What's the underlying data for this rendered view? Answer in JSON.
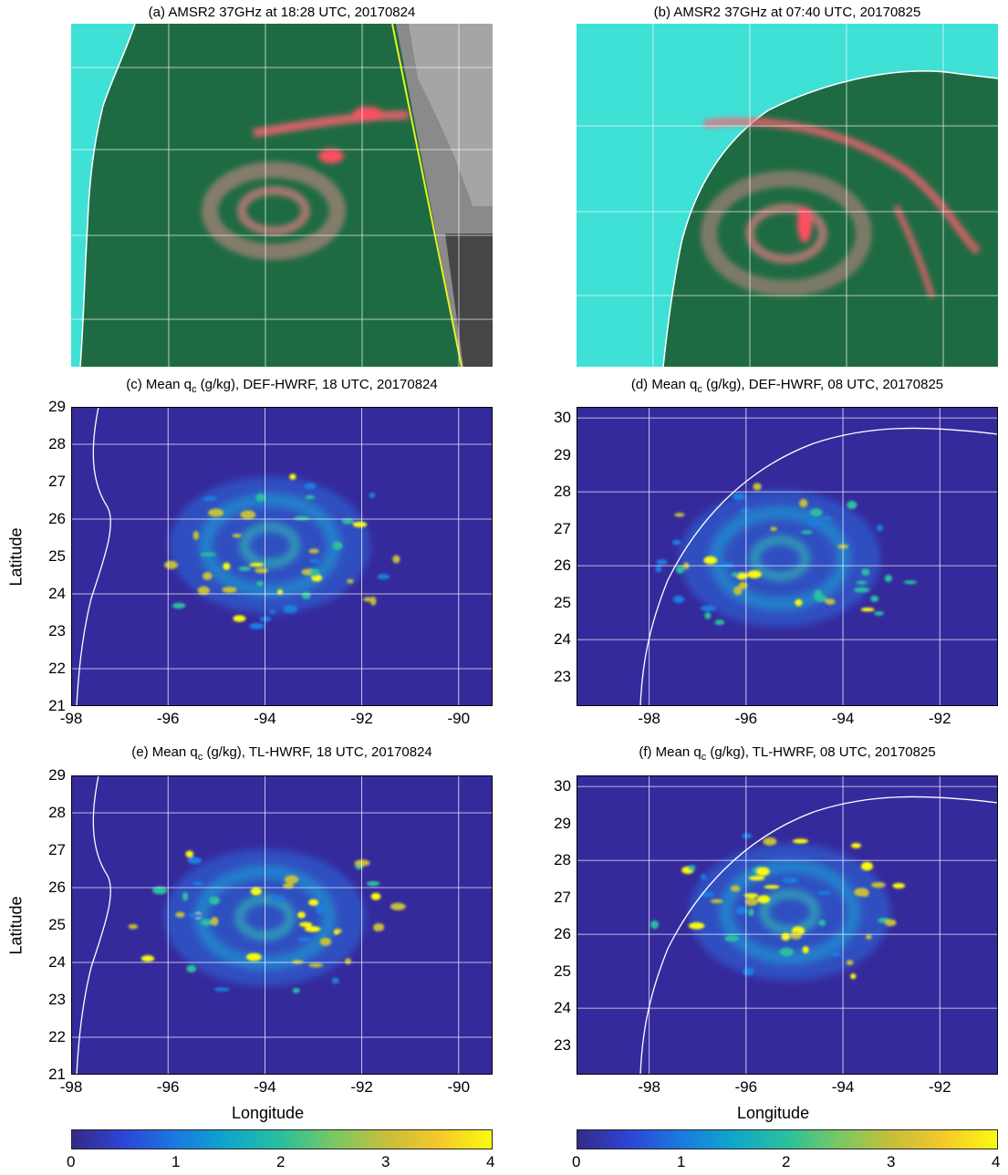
{
  "titles": {
    "a": "(a) AMSR2 37GHz at 18:28 UTC, 20170824",
    "b": "(b) AMSR2 37GHz at 07:40 UTC, 20170825",
    "c_pre": "(c) Mean q",
    "c_post": " (g/kg), DEF-HWRF, 18 UTC, 20170824",
    "d_pre": "(d) Mean q",
    "d_post": " (g/kg), DEF-HWRF, 08 UTC, 20170825",
    "e_pre": "(e) Mean q",
    "e_post": " (g/kg), TL-HWRF, 18 UTC, 20170824",
    "f_pre": "(f) Mean q",
    "f_post": " (g/kg), TL-HWRF, 08 UTC, 20170825",
    "sub": "c"
  },
  "axes": {
    "ylabel": "Latitude",
    "xlabel": "Longitude",
    "left_yticks": [
      "29",
      "28",
      "27",
      "26",
      "25",
      "24",
      "23",
      "22",
      "21"
    ],
    "left_xticks": [
      "-98",
      "-96",
      "-94",
      "-92",
      "-90"
    ],
    "right_yticks": [
      "30",
      "29",
      "28",
      "27",
      "26",
      "25",
      "24",
      "23"
    ],
    "right_xticks": [
      "-98",
      "-96",
      "-94",
      "-92"
    ],
    "colorbar_ticks": [
      "0",
      "1",
      "2",
      "3",
      "4"
    ]
  },
  "colors": {
    "background": "#352a9c",
    "ocean_37ghz": "#1e6b43",
    "land_37ghz": "#3fe0d6",
    "rain_37ghz": "#ff6070",
    "swath_edge": "#e8f020"
  },
  "chart_data": [
    {
      "type": "heatmap",
      "panel": "c",
      "variable": "Mean qc (g/kg)",
      "model": "DEF-HWRF",
      "time": "18 UTC, 20170824",
      "xlim": [
        -98,
        -89.3
      ],
      "ylim": [
        21,
        29
      ],
      "clim": [
        0,
        4
      ],
      "center": [
        -93.9,
        25.3
      ]
    },
    {
      "type": "heatmap",
      "panel": "d",
      "variable": "Mean qc (g/kg)",
      "model": "DEF-HWRF",
      "time": "08 UTC, 20170825",
      "xlim": [
        -99.5,
        -90.8
      ],
      "ylim": [
        22.2,
        30.3
      ],
      "clim": [
        0,
        4
      ],
      "center": [
        -95.3,
        26.2
      ]
    },
    {
      "type": "heatmap",
      "panel": "e",
      "variable": "Mean qc (g/kg)",
      "model": "TL-HWRF",
      "time": "18 UTC, 20170824",
      "xlim": [
        -98,
        -89.3
      ],
      "ylim": [
        21,
        29
      ],
      "clim": [
        0,
        4
      ],
      "center": [
        -94,
        25.2
      ]
    },
    {
      "type": "heatmap",
      "panel": "f",
      "variable": "Mean qc (g/kg)",
      "model": "TL-HWRF",
      "time": "08 UTC, 20170825",
      "xlim": [
        -99.5,
        -90.8
      ],
      "ylim": [
        22.2,
        30.3
      ],
      "clim": [
        0,
        4
      ],
      "center": [
        -95.1,
        26.6
      ]
    }
  ]
}
